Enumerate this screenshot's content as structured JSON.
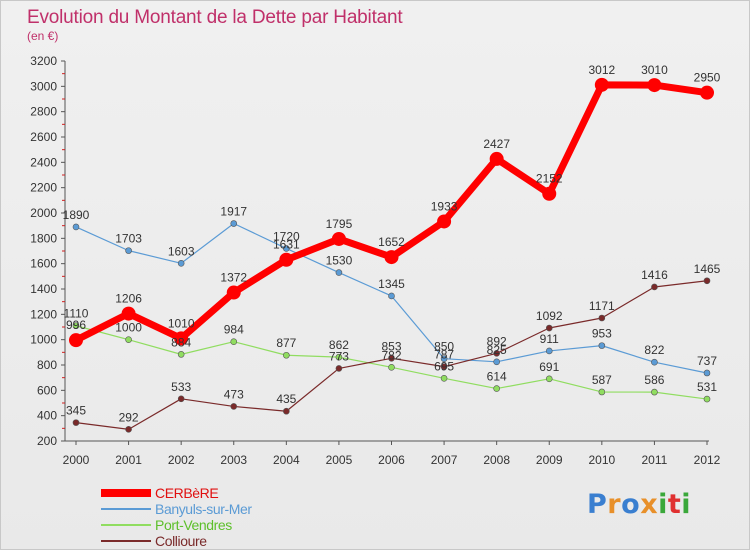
{
  "header": {
    "title": "Evolution du Montant de la Dette par Habitant",
    "subtitle": "(en €)"
  },
  "logo": {
    "text": "Proxiti",
    "colors": [
      "#3a7fd0",
      "#e8902a",
      "#3a7fd0",
      "#e8902a",
      "#3aa83a",
      "#e03030",
      "#3aa83a"
    ]
  },
  "chart_data": {
    "type": "line",
    "title": "Evolution du Montant de la Dette par Habitant",
    "subtitle": "(en €)",
    "xlabel": "",
    "ylabel": "",
    "x": [
      "2000",
      "2001",
      "2002",
      "2003",
      "2004",
      "2005",
      "2006",
      "2007",
      "2008",
      "2009",
      "2010",
      "2011",
      "2012"
    ],
    "ylim": [
      200,
      3200
    ],
    "yticks": [
      "200",
      "400",
      "600",
      "800",
      "1000",
      "1200",
      "1400",
      "1600",
      "1800",
      "2000",
      "2200",
      "2400",
      "2600",
      "2800",
      "3000",
      "3200"
    ],
    "grid": false,
    "legend_position": "bottom-left",
    "series": [
      {
        "name": "CERBèRE",
        "color": "#ff0000",
        "values": [
          996,
          1206,
          1010,
          1372,
          1631,
          1795,
          1652,
          1933,
          2427,
          2152,
          3012,
          3010,
          2950
        ]
      },
      {
        "name": "Banyuls-sur-Mer",
        "color": "#5b9bd5",
        "values": [
          1890,
          1703,
          1603,
          1917,
          1720,
          1530,
          1345,
          850,
          825,
          911,
          953,
          822,
          737
        ]
      },
      {
        "name": "Port-Vendres",
        "color": "#90dd60",
        "values": [
          1110,
          1000,
          884,
          984,
          877,
          862,
          782,
          695,
          614,
          691,
          587,
          586,
          531
        ]
      },
      {
        "name": "Collioure",
        "color": "#7a2a2a",
        "values": [
          345,
          292,
          533,
          473,
          435,
          773,
          853,
          787,
          892,
          1092,
          1171,
          1416,
          1465
        ]
      }
    ]
  }
}
